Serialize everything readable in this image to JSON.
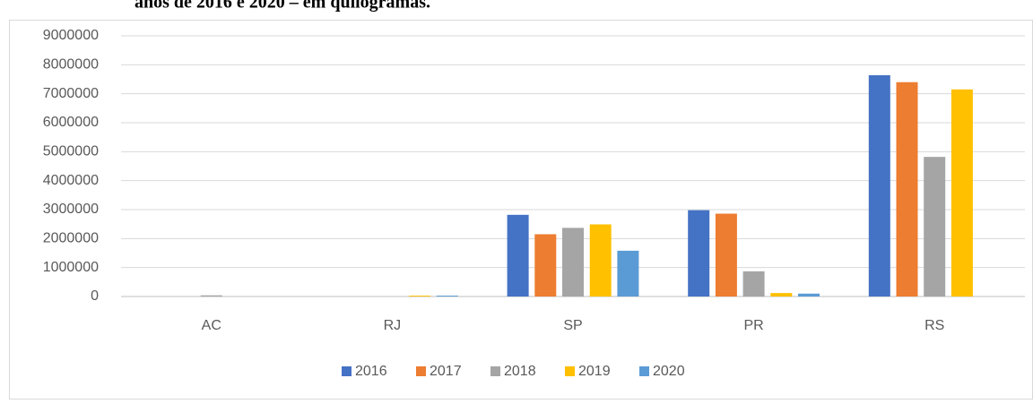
{
  "chart_data": {
    "type": "bar",
    "title": "anos de 2016 e 2020 – em quilogramas.",
    "categories": [
      "AC",
      "RJ",
      "SP",
      "PR",
      "RS"
    ],
    "series": [
      {
        "name": "2016",
        "color": "#4472c4",
        "values": [
          0,
          0,
          2820000,
          2980000,
          7640000
        ]
      },
      {
        "name": "2017",
        "color": "#ed7d31",
        "values": [
          0,
          0,
          2150000,
          2860000,
          7400000
        ]
      },
      {
        "name": "2018",
        "color": "#a5a5a5",
        "values": [
          40000,
          0,
          2370000,
          870000,
          4820000
        ]
      },
      {
        "name": "2019",
        "color": "#ffc000",
        "values": [
          0,
          30000,
          2490000,
          120000,
          7150000
        ]
      },
      {
        "name": "2020",
        "color": "#5b9bd5",
        "values": [
          0,
          30000,
          1580000,
          100000,
          0
        ]
      }
    ],
    "ylim": [
      0,
      9000000
    ],
    "yticks": [
      0,
      1000000,
      2000000,
      3000000,
      4000000,
      5000000,
      6000000,
      7000000,
      8000000,
      9000000
    ],
    "grid": true,
    "legend": "bottom"
  }
}
